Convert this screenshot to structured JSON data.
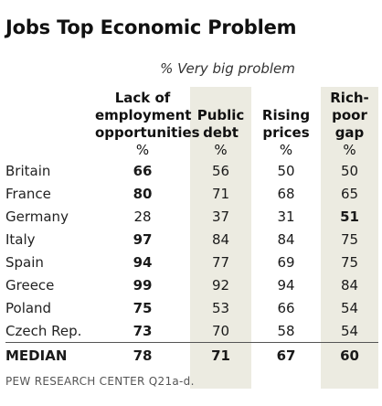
{
  "title": "Jobs Top Economic Problem",
  "subtitle": "% Very big problem",
  "columns": [
    {
      "line1": "Lack of",
      "line2": "employment",
      "line3": "opportunities",
      "unit": "%"
    },
    {
      "line1": "Public",
      "line2": "debt",
      "unit": "%"
    },
    {
      "line1": "Rising",
      "line2": "prices",
      "unit": "%"
    },
    {
      "line1": "Rich-",
      "line2": "poor",
      "line3": "gap",
      "unit": "%"
    }
  ],
  "rows": [
    {
      "country": "Britain",
      "lack": "66",
      "debt": "56",
      "rise": "50",
      "gap": "50"
    },
    {
      "country": "France",
      "lack": "80",
      "debt": "71",
      "rise": "68",
      "gap": "65"
    },
    {
      "country": "Germany",
      "lack": "28",
      "debt": "37",
      "rise": "31",
      "gap": "51"
    },
    {
      "country": "Italy",
      "lack": "97",
      "debt": "84",
      "rise": "84",
      "gap": "75"
    },
    {
      "country": "Spain",
      "lack": "94",
      "debt": "77",
      "rise": "69",
      "gap": "75"
    },
    {
      "country": "Greece",
      "lack": "99",
      "debt": "92",
      "rise": "94",
      "gap": "84"
    },
    {
      "country": "Poland",
      "lack": "75",
      "debt": "53",
      "rise": "66",
      "gap": "54"
    },
    {
      "country": "Czech Rep.",
      "lack": "73",
      "debt": "70",
      "rise": "58",
      "gap": "54"
    }
  ],
  "median": {
    "label": "MEDIAN",
    "lack": "78",
    "debt": "71",
    "rise": "67",
    "gap": "60"
  },
  "source": "PEW RESEARCH CENTER Q21a-d.",
  "chart_data": {
    "type": "table",
    "title": "Jobs Top Economic Problem",
    "subtitle": "% Very big problem",
    "categories": [
      "Britain",
      "France",
      "Germany",
      "Italy",
      "Spain",
      "Greece",
      "Poland",
      "Czech Rep."
    ],
    "series": [
      {
        "name": "Lack of employment opportunities",
        "values": [
          66,
          80,
          28,
          97,
          94,
          99,
          75,
          73
        ]
      },
      {
        "name": "Public debt",
        "values": [
          56,
          71,
          37,
          84,
          77,
          92,
          53,
          70
        ]
      },
      {
        "name": "Rising prices",
        "values": [
          50,
          68,
          31,
          84,
          69,
          94,
          66,
          58
        ]
      },
      {
        "name": "Rich-poor gap",
        "values": [
          50,
          65,
          51,
          75,
          75,
          84,
          54,
          54
        ]
      }
    ],
    "median": {
      "Lack of employment opportunities": 78,
      "Public debt": 71,
      "Rising prices": 67,
      "Rich-poor gap": 60
    }
  }
}
